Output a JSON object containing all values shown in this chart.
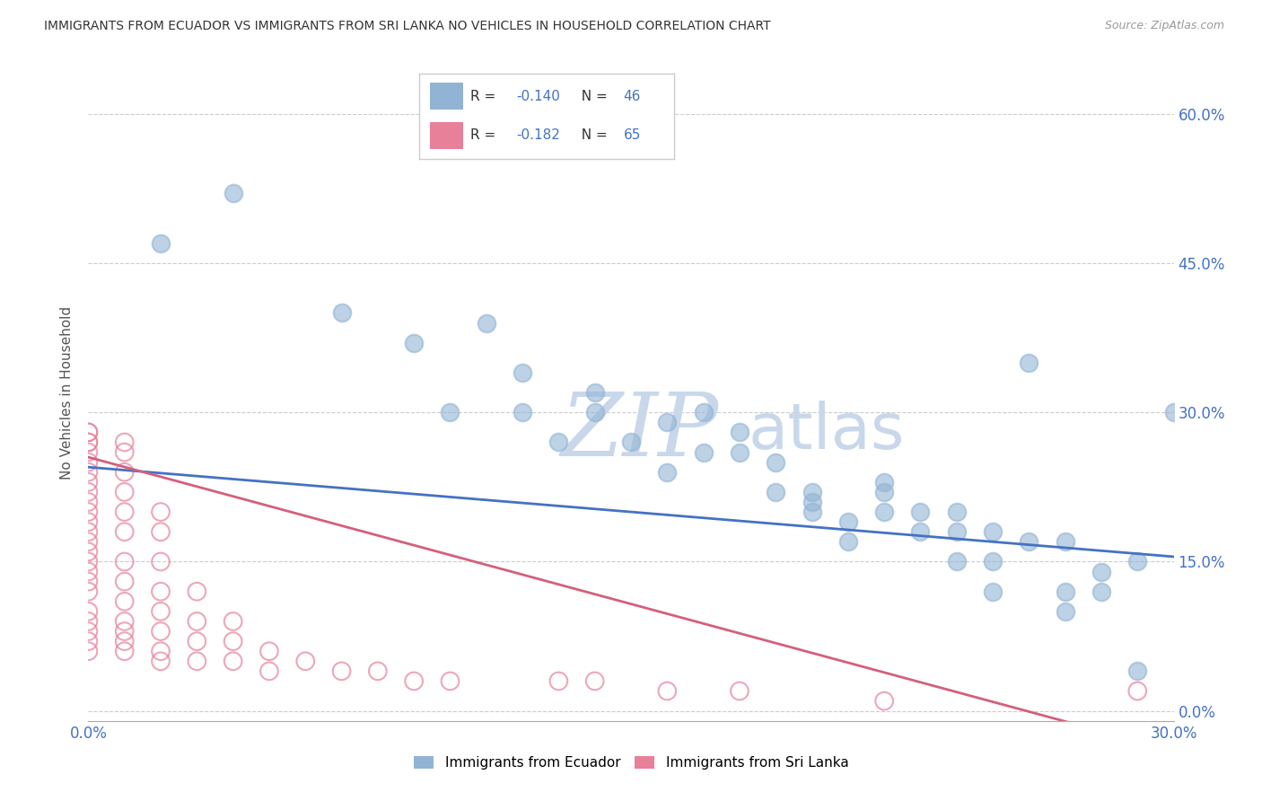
{
  "title": "IMMIGRANTS FROM ECUADOR VS IMMIGRANTS FROM SRI LANKA NO VEHICLES IN HOUSEHOLD CORRELATION CHART",
  "source": "Source: ZipAtlas.com",
  "ylabel": "No Vehicles in Household",
  "ytick_values": [
    0.0,
    0.15,
    0.3,
    0.45,
    0.6
  ],
  "xlim": [
    0.0,
    0.3
  ],
  "ylim": [
    -0.01,
    0.65
  ],
  "ecuador_R": -0.14,
  "ecuador_N": 46,
  "srilanka_R": -0.182,
  "srilanka_N": 65,
  "ecuador_color": "#92b4d4",
  "srilanka_color": "#e8809a",
  "ecuador_line_color": "#4472c4",
  "srilanka_line_color": "#d4607a",
  "watermark_zip": "ZIP",
  "watermark_atlas": "atlas",
  "watermark_color": "#c8d8ea",
  "ecuador_scatter_x": [
    0.02,
    0.04,
    0.07,
    0.09,
    0.1,
    0.11,
    0.12,
    0.12,
    0.13,
    0.14,
    0.14,
    0.15,
    0.16,
    0.16,
    0.17,
    0.17,
    0.18,
    0.18,
    0.19,
    0.19,
    0.2,
    0.2,
    0.2,
    0.21,
    0.21,
    0.22,
    0.22,
    0.22,
    0.23,
    0.23,
    0.24,
    0.24,
    0.24,
    0.25,
    0.25,
    0.25,
    0.26,
    0.26,
    0.27,
    0.27,
    0.27,
    0.28,
    0.28,
    0.29,
    0.29,
    0.3
  ],
  "ecuador_scatter_y": [
    0.47,
    0.52,
    0.4,
    0.37,
    0.3,
    0.39,
    0.3,
    0.34,
    0.27,
    0.32,
    0.3,
    0.27,
    0.29,
    0.24,
    0.3,
    0.26,
    0.26,
    0.28,
    0.25,
    0.22,
    0.22,
    0.2,
    0.21,
    0.17,
    0.19,
    0.22,
    0.2,
    0.23,
    0.18,
    0.2,
    0.15,
    0.18,
    0.2,
    0.15,
    0.18,
    0.12,
    0.35,
    0.17,
    0.1,
    0.12,
    0.17,
    0.14,
    0.12,
    0.15,
    0.04,
    0.3
  ],
  "srilanka_scatter_x": [
    0.0,
    0.0,
    0.0,
    0.0,
    0.0,
    0.0,
    0.0,
    0.0,
    0.0,
    0.0,
    0.0,
    0.0,
    0.0,
    0.0,
    0.0,
    0.0,
    0.0,
    0.0,
    0.0,
    0.0,
    0.0,
    0.0,
    0.0,
    0.0,
    0.01,
    0.01,
    0.01,
    0.01,
    0.01,
    0.01,
    0.01,
    0.01,
    0.01,
    0.01,
    0.01,
    0.01,
    0.01,
    0.02,
    0.02,
    0.02,
    0.02,
    0.02,
    0.02,
    0.02,
    0.02,
    0.03,
    0.03,
    0.03,
    0.03,
    0.04,
    0.04,
    0.04,
    0.05,
    0.05,
    0.06,
    0.07,
    0.08,
    0.09,
    0.1,
    0.13,
    0.14,
    0.16,
    0.18,
    0.22,
    0.29
  ],
  "srilanka_scatter_y": [
    0.28,
    0.28,
    0.27,
    0.27,
    0.26,
    0.25,
    0.24,
    0.23,
    0.22,
    0.21,
    0.2,
    0.19,
    0.18,
    0.17,
    0.16,
    0.15,
    0.14,
    0.13,
    0.12,
    0.1,
    0.09,
    0.08,
    0.07,
    0.06,
    0.27,
    0.26,
    0.24,
    0.22,
    0.2,
    0.18,
    0.15,
    0.13,
    0.11,
    0.09,
    0.08,
    0.07,
    0.06,
    0.2,
    0.18,
    0.15,
    0.12,
    0.1,
    0.08,
    0.06,
    0.05,
    0.12,
    0.09,
    0.07,
    0.05,
    0.09,
    0.07,
    0.05,
    0.06,
    0.04,
    0.05,
    0.04,
    0.04,
    0.03,
    0.03,
    0.03,
    0.03,
    0.02,
    0.02,
    0.01,
    0.02
  ]
}
